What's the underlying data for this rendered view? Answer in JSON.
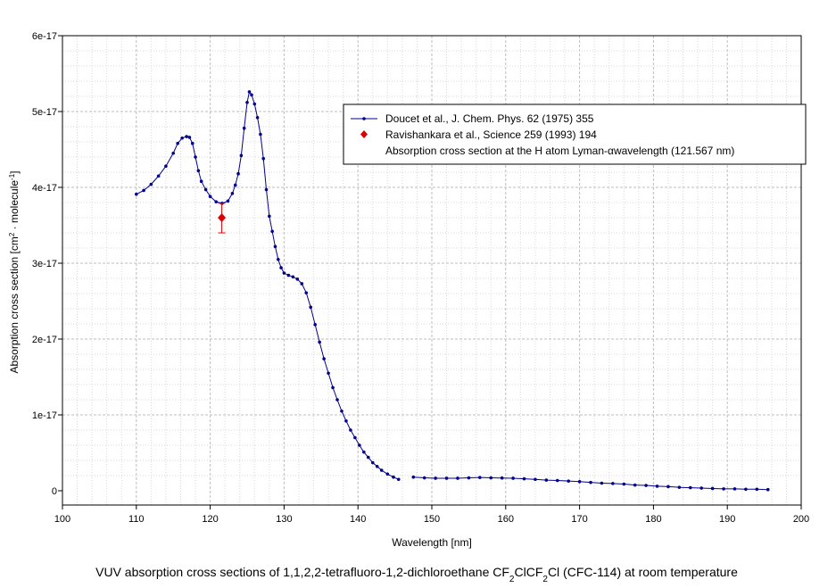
{
  "chart_data": {
    "type": "line",
    "caption_parts": [
      "VUV absorption cross sections of 1,1,2,2-tetrafluoro-1,2-dichloroethane CF",
      "2",
      "ClCF",
      "2",
      "Cl  (CFC-114) at room temperature"
    ],
    "xlabel": "Wavelength [nm]",
    "ylabel_parts": [
      "Absorption cross section [cm",
      "2",
      " · molecule",
      "-1",
      "]"
    ],
    "xlim": [
      100,
      200
    ],
    "ylim": [
      0,
      6e-17
    ],
    "x_ticks": [
      100,
      110,
      120,
      130,
      140,
      150,
      160,
      170,
      180,
      190,
      200
    ],
    "y_ticks": [
      {
        "value": 0,
        "label": "0"
      },
      {
        "value": 1e-17,
        "label": "1e-17"
      },
      {
        "value": 2e-17,
        "label": "2e-17"
      },
      {
        "value": 3e-17,
        "label": "3e-17"
      },
      {
        "value": 4e-17,
        "label": "4e-17"
      },
      {
        "value": 5e-17,
        "label": "5e-17"
      },
      {
        "value": 6e-17,
        "label": "6e-17"
      }
    ],
    "grid": true,
    "legend_position": "top-right",
    "series": [
      {
        "name": "Doucet et al., J. Chem. Phys. 62 (1975) 355",
        "color": "#00008b",
        "marker": "dot",
        "segments": [
          [
            [
              110.0,
              3.91e-17
            ],
            [
              111.0,
              3.96e-17
            ],
            [
              112.0,
              4.04e-17
            ],
            [
              113.0,
              4.15e-17
            ],
            [
              114.0,
              4.28e-17
            ],
            [
              115.0,
              4.45e-17
            ],
            [
              115.6,
              4.58e-17
            ],
            [
              116.2,
              4.65e-17
            ],
            [
              116.8,
              4.67e-17
            ],
            [
              117.2,
              4.66e-17
            ],
            [
              117.6,
              4.58e-17
            ],
            [
              118.0,
              4.4e-17
            ],
            [
              118.4,
              4.22e-17
            ],
            [
              118.8,
              4.08e-17
            ],
            [
              119.4,
              3.97e-17
            ],
            [
              120.0,
              3.88e-17
            ],
            [
              120.8,
              3.81e-17
            ],
            [
              121.6,
              3.79e-17
            ],
            [
              122.4,
              3.82e-17
            ],
            [
              123.0,
              3.92e-17
            ],
            [
              123.4,
              4.03e-17
            ],
            [
              123.8,
              4.18e-17
            ],
            [
              124.2,
              4.42e-17
            ],
            [
              124.6,
              4.78e-17
            ],
            [
              125.0,
              5.12e-17
            ],
            [
              125.3,
              5.26e-17
            ],
            [
              125.6,
              5.22e-17
            ],
            [
              126.0,
              5.1e-17
            ],
            [
              126.4,
              4.92e-17
            ],
            [
              126.8,
              4.7e-17
            ],
            [
              127.2,
              4.38e-17
            ],
            [
              127.6,
              3.97e-17
            ],
            [
              128.0,
              3.62e-17
            ],
            [
              128.4,
              3.42e-17
            ],
            [
              128.8,
              3.22e-17
            ],
            [
              129.2,
              3.05e-17
            ],
            [
              129.6,
              2.94e-17
            ],
            [
              130.0,
              2.87e-17
            ],
            [
              130.6,
              2.84e-17
            ],
            [
              131.2,
              2.82e-17
            ],
            [
              131.8,
              2.79e-17
            ],
            [
              132.4,
              2.73e-17
            ],
            [
              133.0,
              2.61e-17
            ],
            [
              133.6,
              2.42e-17
            ],
            [
              134.2,
              2.19e-17
            ],
            [
              134.8,
              1.96e-17
            ],
            [
              135.4,
              1.74e-17
            ],
            [
              136.0,
              1.55e-17
            ],
            [
              136.6,
              1.36e-17
            ],
            [
              137.2,
              1.2e-17
            ],
            [
              137.8,
              1.05e-17
            ],
            [
              138.4,
              9.2e-18
            ],
            [
              139.0,
              8e-18
            ],
            [
              139.6,
              7e-18
            ],
            [
              140.2,
              6e-18
            ],
            [
              140.8,
              5.1e-18
            ],
            [
              141.4,
              4.4e-18
            ],
            [
              142.0,
              3.7e-18
            ],
            [
              142.6,
              3.2e-18
            ],
            [
              143.2,
              2.7e-18
            ],
            [
              144.0,
              2.2e-18
            ],
            [
              144.8,
              1.8e-18
            ],
            [
              145.5,
              1.5e-18
            ]
          ],
          [
            [
              147.5,
              1.8e-18
            ],
            [
              149.0,
              1.7e-18
            ],
            [
              150.5,
              1.65e-18
            ],
            [
              152.0,
              1.65e-18
            ],
            [
              153.5,
              1.65e-18
            ],
            [
              155.0,
              1.7e-18
            ],
            [
              156.5,
              1.75e-18
            ],
            [
              158.0,
              1.7e-18
            ],
            [
              159.5,
              1.68e-18
            ],
            [
              161.0,
              1.65e-18
            ],
            [
              162.5,
              1.58e-18
            ],
            [
              164.0,
              1.5e-18
            ],
            [
              165.5,
              1.4e-18
            ],
            [
              167.0,
              1.35e-18
            ],
            [
              168.5,
              1.28e-18
            ],
            [
              170.0,
              1.2e-18
            ],
            [
              171.5,
              1.1e-18
            ],
            [
              173.0,
              1e-18
            ],
            [
              174.5,
              9.5e-19
            ],
            [
              176.0,
              8.8e-19
            ],
            [
              177.5,
              7.5e-19
            ],
            [
              179.0,
              7e-19
            ],
            [
              180.5,
              6e-19
            ],
            [
              182.0,
              5.5e-19
            ],
            [
              183.5,
              4.5e-19
            ],
            [
              185.0,
              4e-19
            ],
            [
              186.5,
              3.5e-19
            ],
            [
              188.0,
              3e-19
            ],
            [
              189.5,
              2.5e-19
            ],
            [
              191.0,
              2.5e-19
            ],
            [
              192.5,
              2e-19
            ],
            [
              194.0,
              2e-19
            ],
            [
              195.5,
              1.5e-19
            ]
          ]
        ]
      },
      {
        "name": "Ravishankara et al., Science 259 (1993) 194",
        "color": "#dd0000",
        "marker": "diamond",
        "points": [
          {
            "x": 121.567,
            "y": 3.6e-17,
            "err_low": 3.4e-17,
            "err_high": 3.79e-17
          }
        ]
      },
      {
        "name": "Absorption cross section at the H atom Lyman-",
        "name_greek": "α",
        "name_tail": "wavelength (121.567 nm)",
        "color": "#808080",
        "marker": "none"
      }
    ]
  }
}
